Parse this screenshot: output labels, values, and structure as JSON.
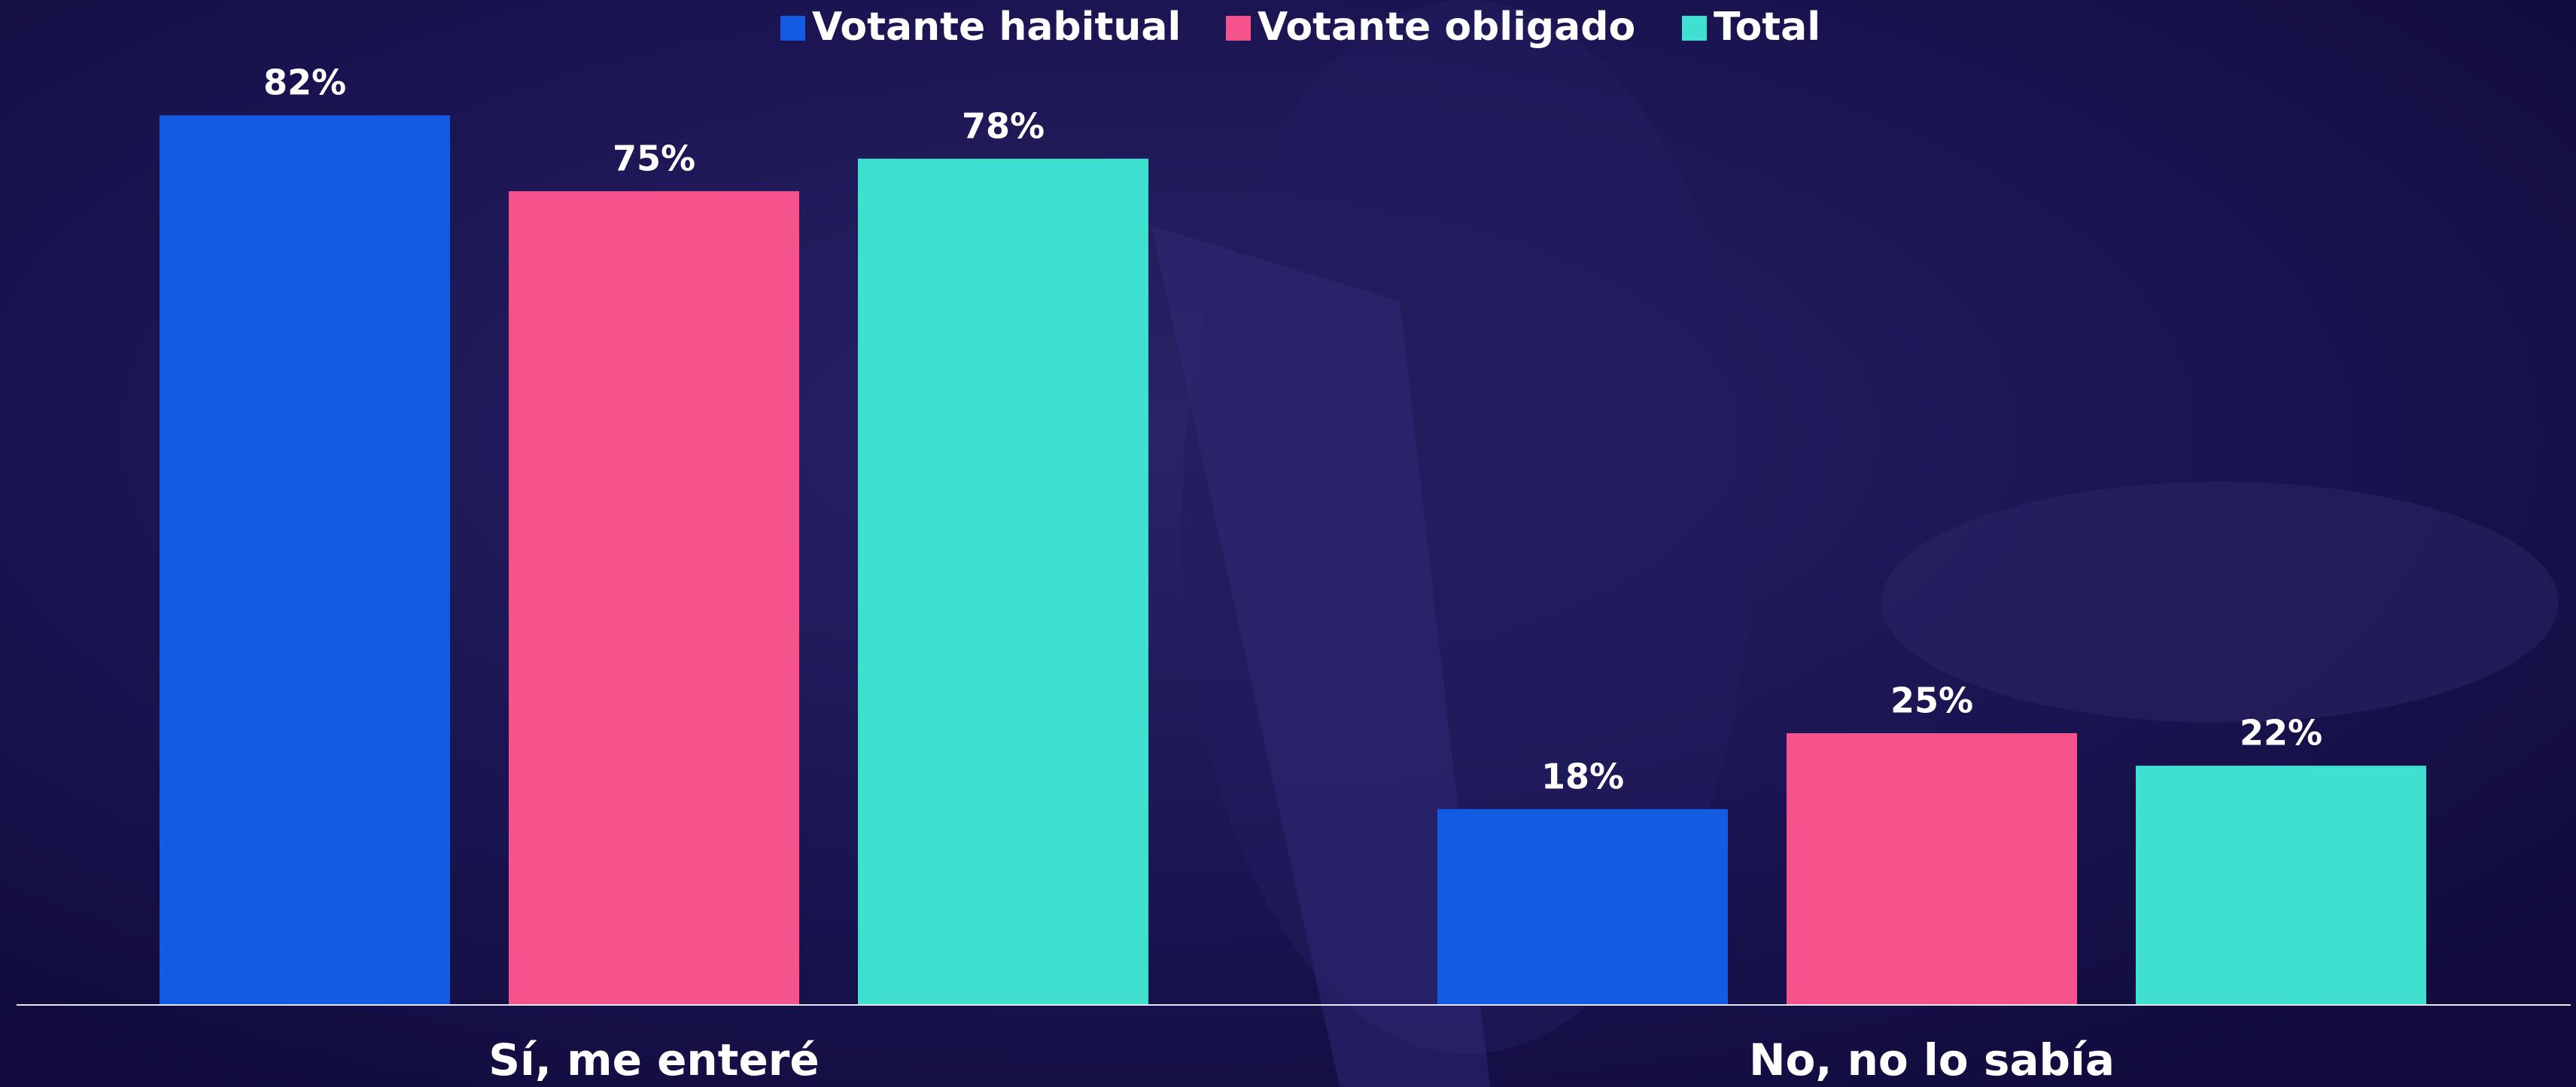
{
  "chart_data": {
    "type": "bar",
    "categories": [
      "Sí, me enteré",
      "No, no lo sabía"
    ],
    "series": [
      {
        "name": "Votante habitual",
        "color": "#135be3",
        "values": [
          82,
          18
        ],
        "value_labels": [
          "82%",
          "18%"
        ]
      },
      {
        "name": "Votante obligado",
        "color": "#f5538b",
        "values": [
          75,
          25
        ],
        "value_labels": [
          "75%",
          "25%"
        ]
      },
      {
        "name": "Total",
        "color": "#40e0d0",
        "values": [
          78,
          22
        ],
        "value_labels": [
          "78%",
          "22%"
        ]
      }
    ]
  }
}
